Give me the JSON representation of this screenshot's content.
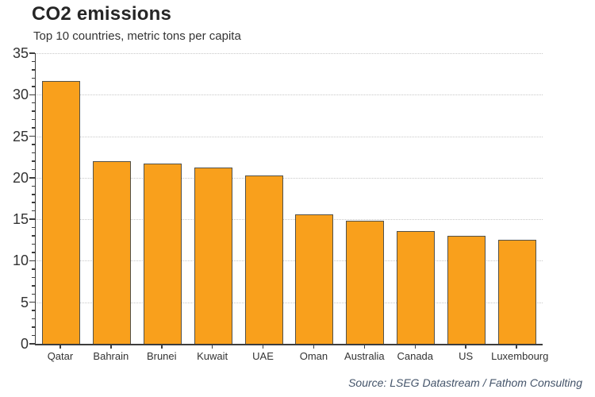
{
  "header": {
    "title": "CO2 emissions",
    "subtitle": "Top 10 countries, metric tons per capita"
  },
  "footer": {
    "source": "Source: LSEG Datastream / Fathom Consulting"
  },
  "chart_data": {
    "type": "bar",
    "title": "CO2 emissions",
    "subtitle": "Top 10 countries, metric tons per capita",
    "categories": [
      "Qatar",
      "Bahrain",
      "Brunei",
      "Kuwait",
      "UAE",
      "Oman",
      "Australia",
      "Canada",
      "US",
      "Luxembourg"
    ],
    "values": [
      31.7,
      22.0,
      21.7,
      21.2,
      20.3,
      15.6,
      14.8,
      13.6,
      13.0,
      12.5
    ],
    "xlabel": "",
    "ylabel": "",
    "ylim": [
      0,
      35
    ],
    "yticks": [
      0,
      5,
      10,
      15,
      20,
      25,
      30,
      35
    ],
    "ytick_step": 5,
    "minor_tick_step": 1,
    "grid": "horizontal-dotted",
    "legend": "none",
    "bar_color": "#F9A01C",
    "bar_border_color": "#53524a",
    "axis_color": "#3d3d3d",
    "gridline_color": "#c8c8c8",
    "source_color": "#44546a",
    "source": "Source: LSEG Datastream / Fathom Consulting"
  }
}
